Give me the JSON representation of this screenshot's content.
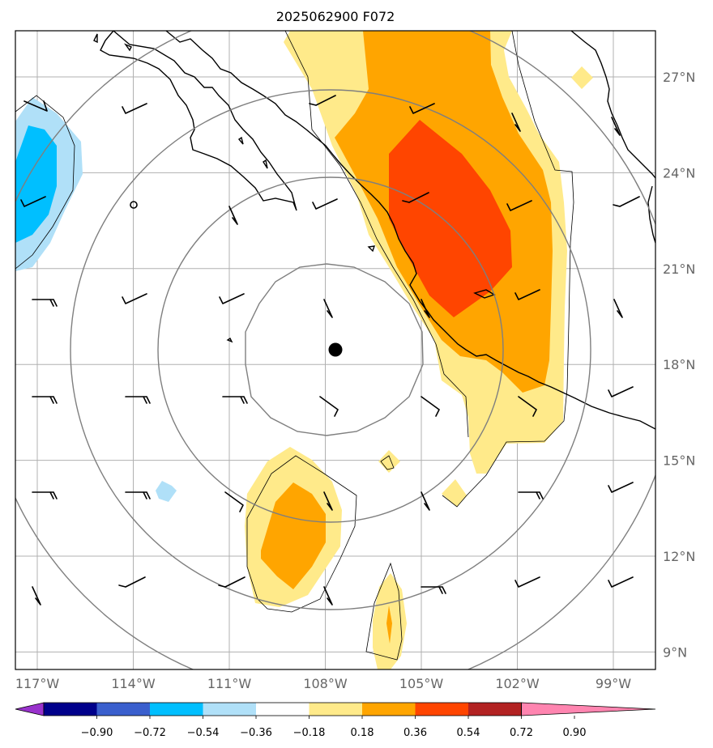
{
  "title": "2025062900 F072",
  "longitude_labels": [
    "117°W",
    "114°W",
    "111°W",
    "108°W",
    "105°W",
    "102°W",
    "99°W"
  ],
  "latitude_labels": [
    "27°N",
    "24°N",
    "21°N",
    "18°N",
    "15°N",
    "12°N",
    "9°N"
  ],
  "chart_data": {
    "type": "map",
    "projection": "lat-lon",
    "lon_range": [
      -117.7,
      -97.9
    ],
    "lat_range": [
      8.6,
      28.5
    ],
    "gridlines": true,
    "storm_center": {
      "lon": -107.7,
      "lat": 18.5
    },
    "range_rings": "concentric rings around storm center",
    "colorbar": {
      "orientation": "horizontal",
      "extend": "both",
      "levels": [
        "−0.90",
        "−0.72",
        "−0.54",
        "−0.36",
        "−0.18",
        "0.18",
        "0.36",
        "0.54",
        "0.72",
        "0.90"
      ],
      "colors": [
        "#9932cc",
        "#00008b",
        "#3a5fcd",
        "#00bfff",
        "#b0e0f8",
        "#ffffff",
        "#ffea8a",
        "#ffa500",
        "#ff4500",
        "#b22222",
        "#ff85b0"
      ]
    }
  }
}
